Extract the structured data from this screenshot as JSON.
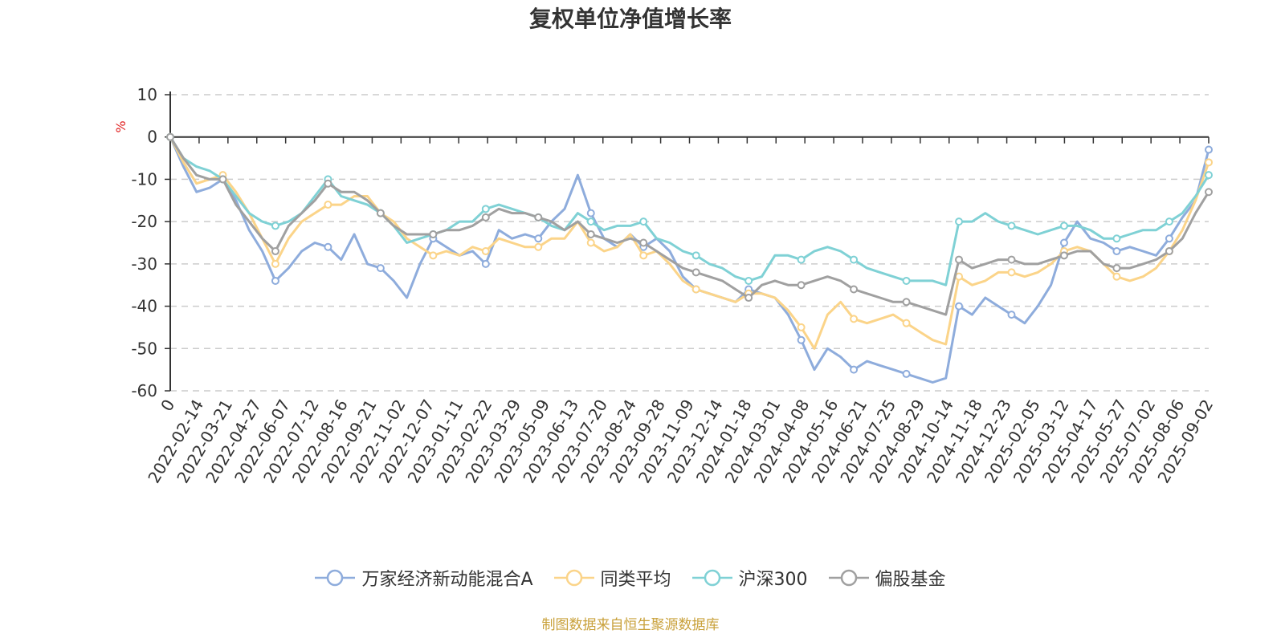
{
  "chart_data": {
    "type": "line",
    "title": "复权单位净值增长率",
    "ylabel": "%",
    "ylim": [
      -60,
      10
    ],
    "yticks": [
      "10",
      "0",
      "-10",
      "-20",
      "-30",
      "-40",
      "-50",
      "-60"
    ],
    "x_labels": [
      "0",
      "2022-02-14",
      "2022-03-21",
      "2022-04-27",
      "2022-06-07",
      "2022-07-12",
      "2022-08-16",
      "2022-09-21",
      "2022-11-02",
      "2022-12-07",
      "2023-01-11",
      "2023-02-22",
      "2023-03-29",
      "2023-05-09",
      "2023-06-13",
      "2023-07-20",
      "2023-08-24",
      "2023-09-28",
      "2023-11-09",
      "2023-12-14",
      "2024-01-18",
      "2024-03-01",
      "2024-04-08",
      "2024-05-16",
      "2024-06-21",
      "2024-07-25",
      "2024-08-29",
      "2024-10-14",
      "2024-11-18",
      "2024-12-23",
      "2025-02-05",
      "2025-03-12",
      "2025-04-17",
      "2025-05-27",
      "2025-07-02",
      "2025-08-06",
      "2025-09-02"
    ],
    "grid": "dashed horizontal",
    "legend_position": "bottom",
    "series": [
      {
        "name": "万家经济新动能混合A",
        "color": "#8eacdc",
        "values": [
          0,
          -7,
          -13,
          -12,
          -10,
          -15,
          -22,
          -27,
          -34,
          -31,
          -27,
          -25,
          -26,
          -29,
          -23,
          -30,
          -31,
          -34,
          -38,
          -30,
          -24,
          -26,
          -28,
          -27,
          -30,
          -22,
          -24,
          -23,
          -24,
          -20,
          -17,
          -9,
          -18,
          -24,
          -26,
          -23,
          -26,
          -24,
          -27,
          -33,
          -36,
          -37,
          -38,
          -39,
          -36,
          -37,
          -38,
          -42,
          -48,
          -55,
          -50,
          -52,
          -55,
          -53,
          -54,
          -55,
          -56,
          -57,
          -58,
          -57,
          -40,
          -42,
          -38,
          -40,
          -42,
          -44,
          -40,
          -35,
          -25,
          -20,
          -24,
          -25,
          -27,
          -26,
          -27,
          -28,
          -24,
          -19,
          -15,
          -3
        ]
      },
      {
        "name": "同类平均",
        "color": "#fbd489",
        "values": [
          0,
          -6,
          -11,
          -10,
          -9,
          -13,
          -18,
          -24,
          -30,
          -24,
          -20,
          -18,
          -16,
          -16,
          -14,
          -14,
          -18,
          -20,
          -24,
          -26,
          -28,
          -27,
          -28,
          -26,
          -27,
          -24,
          -25,
          -26,
          -26,
          -24,
          -24,
          -20,
          -25,
          -27,
          -26,
          -23,
          -28,
          -27,
          -30,
          -34,
          -36,
          -37,
          -38,
          -39,
          -37,
          -37,
          -38,
          -41,
          -45,
          -50,
          -42,
          -39,
          -43,
          -44,
          -43,
          -42,
          -44,
          -46,
          -48,
          -49,
          -33,
          -35,
          -34,
          -32,
          -32,
          -33,
          -32,
          -30,
          -27,
          -26,
          -27,
          -30,
          -33,
          -34,
          -33,
          -31,
          -27,
          -22,
          -15,
          -6
        ]
      },
      {
        "name": "沪深300",
        "color": "#7fd1d5",
        "values": [
          0,
          -5,
          -7,
          -8,
          -10,
          -14,
          -18,
          -20,
          -21,
          -20,
          -18,
          -14,
          -10,
          -14,
          -15,
          -16,
          -18,
          -21,
          -25,
          -24,
          -23,
          -22,
          -20,
          -20,
          -17,
          -16,
          -17,
          -18,
          -19,
          -21,
          -22,
          -18,
          -20,
          -22,
          -21,
          -21,
          -20,
          -24,
          -25,
          -27,
          -28,
          -30,
          -31,
          -33,
          -34,
          -33,
          -28,
          -28,
          -29,
          -27,
          -26,
          -27,
          -29,
          -31,
          -32,
          -33,
          -34,
          -34,
          -34,
          -35,
          -20,
          -20,
          -18,
          -20,
          -21,
          -22,
          -23,
          -22,
          -21,
          -21,
          -22,
          -24,
          -24,
          -23,
          -22,
          -22,
          -20,
          -18,
          -14,
          -9
        ]
      },
      {
        "name": "偏股基金",
        "color": "#a0a0a0",
        "values": [
          0,
          -5,
          -9,
          -10,
          -10,
          -16,
          -20,
          -24,
          -27,
          -21,
          -18,
          -15,
          -11,
          -13,
          -13,
          -15,
          -18,
          -21,
          -23,
          -23,
          -23,
          -22,
          -22,
          -21,
          -19,
          -17,
          -18,
          -18,
          -19,
          -20,
          -22,
          -20,
          -23,
          -24,
          -25,
          -24,
          -25,
          -27,
          -29,
          -31,
          -32,
          -33,
          -34,
          -36,
          -38,
          -35,
          -34,
          -35,
          -35,
          -34,
          -33,
          -34,
          -36,
          -37,
          -38,
          -39,
          -39,
          -40,
          -41,
          -42,
          -29,
          -31,
          -30,
          -29,
          -29,
          -30,
          -30,
          -29,
          -28,
          -27,
          -27,
          -30,
          -31,
          -31,
          -30,
          -29,
          -27,
          -24,
          -18,
          -13
        ]
      }
    ]
  },
  "source_note": "制图数据来自恒生聚源数据库"
}
